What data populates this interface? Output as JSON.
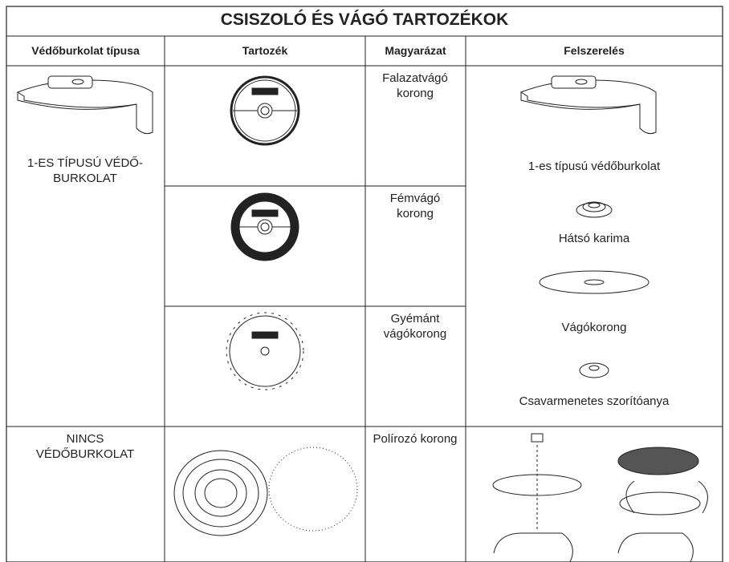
{
  "title": "CSISZOLÓ ÉS VÁGÓ TARTOZÉKOK",
  "headers": [
    "Védőburkolat típusa",
    "Tartozék",
    "Magyarázat",
    "Felszerelés"
  ],
  "sections": [
    {
      "guard": "1-ES TÍPUSÚ VÉDŐ-BURKOLAT",
      "accessories": [
        {
          "description": "Falazatvágó korong"
        },
        {
          "description": "Fémvágó korong"
        },
        {
          "description": "Gyémánt vágókorong"
        }
      ],
      "mounting": [
        "1-es típusú védőburkolat",
        "Hátsó karima",
        "Vágókorong",
        "Csavarmenetes szorítóanya"
      ]
    },
    {
      "guard": "NINCS VÉDŐBURKOLAT",
      "accessories": [
        {
          "description": "Polírozó korong"
        }
      ],
      "mounting": []
    }
  ]
}
